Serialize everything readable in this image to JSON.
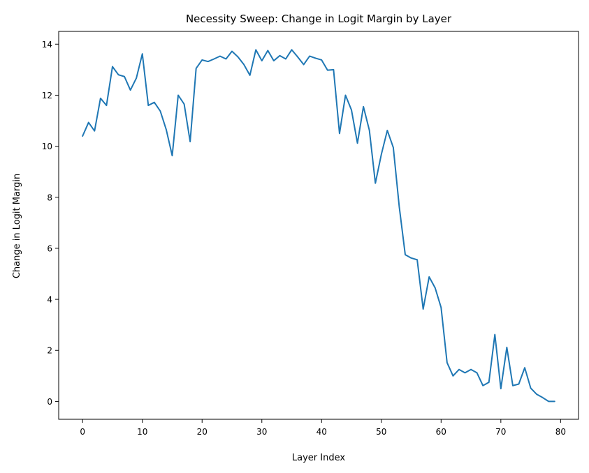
{
  "chart_data": {
    "type": "line",
    "title": "Necessity Sweep: Change in Logit Margin by Layer",
    "xlabel": "Layer Index",
    "ylabel": "Change in Logit Margin",
    "xlim": [
      -4,
      83
    ],
    "ylim": [
      -0.7,
      14.5
    ],
    "xticks": [
      0,
      10,
      20,
      30,
      40,
      50,
      60,
      70,
      80
    ],
    "yticks": [
      0,
      2,
      4,
      6,
      8,
      10,
      12,
      14
    ],
    "grid": false,
    "line_color": "#1f77b4",
    "series": [
      {
        "x": [
          0,
          1,
          2,
          3,
          4,
          5,
          6,
          7,
          8,
          9,
          10,
          11,
          12,
          13,
          14,
          15,
          16,
          17,
          18,
          19,
          20,
          21,
          22,
          23,
          24,
          25,
          26,
          27,
          28,
          29,
          30,
          31,
          32,
          33,
          34,
          35,
          36,
          37,
          38,
          39,
          40,
          41,
          42,
          43,
          44,
          45,
          46,
          47,
          48,
          49,
          50,
          51,
          52,
          53,
          54,
          55,
          56,
          57,
          58,
          59,
          60,
          61,
          62,
          63,
          64,
          65,
          66,
          67,
          68,
          69,
          70,
          71,
          72,
          73,
          74,
          75,
          76,
          77,
          78,
          79
        ],
        "values": [
          10.4,
          10.93,
          10.6,
          11.88,
          11.6,
          13.12,
          12.8,
          12.73,
          12.2,
          12.67,
          13.62,
          11.6,
          11.72,
          11.38,
          10.65,
          9.63,
          12.0,
          11.65,
          10.18,
          13.05,
          13.38,
          13.32,
          13.42,
          13.53,
          13.42,
          13.72,
          13.5,
          13.2,
          12.78,
          13.78,
          13.35,
          13.75,
          13.35,
          13.55,
          13.42,
          13.78,
          13.5,
          13.2,
          13.53,
          13.45,
          13.38,
          12.98,
          13.0,
          10.5,
          12.0,
          11.42,
          10.12,
          11.55,
          10.62,
          8.55,
          9.68,
          10.62,
          9.95,
          7.62,
          5.75,
          5.62,
          5.55,
          3.62,
          4.88,
          4.45,
          3.68,
          1.52,
          1.0,
          1.25,
          1.12,
          1.25,
          1.12,
          0.62,
          0.75,
          2.62,
          0.5,
          2.12,
          0.62,
          0.68,
          1.32,
          0.52,
          0.28,
          0.15,
          0.0,
          0.0
        ]
      }
    ]
  }
}
